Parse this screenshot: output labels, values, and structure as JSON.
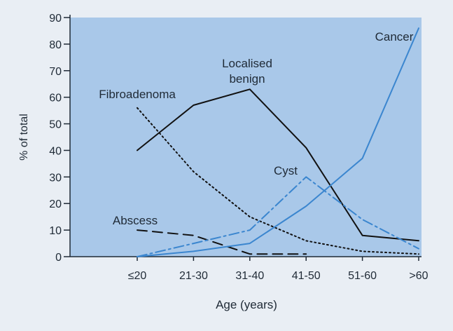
{
  "chart_data": {
    "type": "line",
    "title": "",
    "xlabel": "Age (years)",
    "ylabel": "% of total",
    "categories": [
      "≤20",
      "21-30",
      "31-40",
      "41-50",
      "51-60",
      ">60"
    ],
    "ylim": [
      0,
      90
    ],
    "yticks": [
      0,
      10,
      20,
      30,
      40,
      50,
      60,
      70,
      80,
      90
    ],
    "grid": false,
    "legend": "none (series labelled directly)",
    "colors": {
      "plot_background": "#a9c8e9",
      "page_background": "#e9eef4",
      "black_series": "#111111",
      "blue_series": "#3b86cf"
    },
    "series": [
      {
        "name": "Localised benign",
        "values": [
          40,
          57,
          63,
          41,
          8,
          6
        ],
        "style": "solid",
        "color": "#111111"
      },
      {
        "name": "Fibroadenoma",
        "values": [
          56,
          32,
          15,
          6,
          2,
          1
        ],
        "style": "dotted",
        "color": "#111111"
      },
      {
        "name": "Abscess",
        "values": [
          10,
          8,
          1,
          1,
          null,
          null
        ],
        "style": "dashed",
        "color": "#111111"
      },
      {
        "name": "Cyst",
        "values": [
          0,
          5,
          10,
          30,
          14,
          3
        ],
        "style": "dash-dot",
        "color": "#3b86cf"
      },
      {
        "name": "Cancer",
        "values": [
          0,
          2,
          5,
          19,
          37,
          86
        ],
        "style": "solid",
        "color": "#3b86cf"
      }
    ],
    "annotations": [
      {
        "text": "Cancer",
        "series": "Cancer"
      },
      {
        "text": "Localised\nbenign",
        "series": "Localised benign"
      },
      {
        "text": "Fibroadenoma",
        "series": "Fibroadenoma"
      },
      {
        "text": "Cyst",
        "series": "Cyst"
      },
      {
        "text": "Abscess",
        "series": "Abscess"
      }
    ]
  }
}
